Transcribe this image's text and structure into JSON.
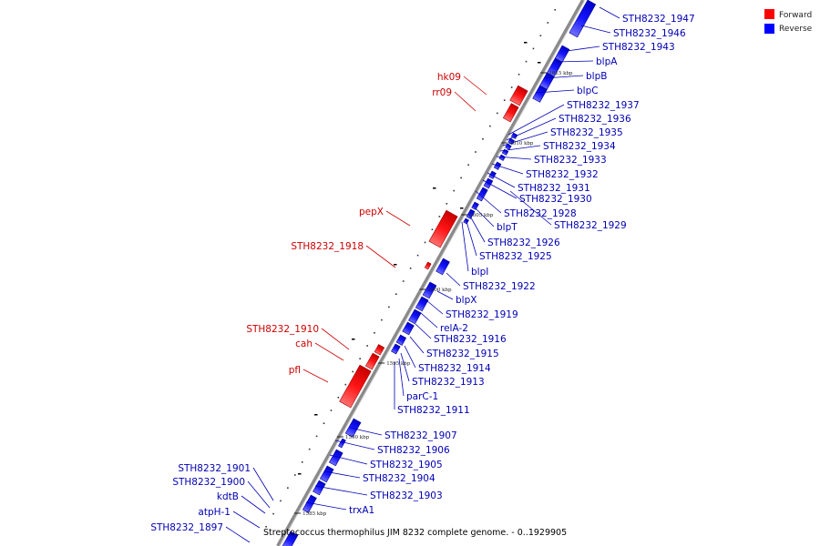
{
  "caption": "Streptococcus thermophilus JIM 8232 complete genome. - 0..1929905",
  "legend": [
    {
      "label": "Forward",
      "color": "#ff0000"
    },
    {
      "label": "Reverse",
      "color": "#0000ff"
    }
  ],
  "colors": {
    "forward": "#ff1a1a",
    "reverse": "#1a1aff",
    "axis": "#8a8a8a"
  },
  "ticks": [
    "1615 kbp",
    "1610 kbp",
    "1605 kbp",
    "1600 kbp",
    "1595 kbp",
    "1590 kbp",
    "1585 kbp"
  ],
  "forward_labels": [
    "hk09",
    "rr09",
    "pepX",
    "STH8232_1918",
    "STH8232_1910",
    "cah",
    "pfl"
  ],
  "reverse_labels": [
    "STH8232_1947",
    "STH8232_1946",
    "STH8232_1943",
    "blpA",
    "blpB",
    "blpC",
    "STH8232_1937",
    "STH8232_1936",
    "STH8232_1935",
    "STH8232_1934",
    "STH8232_1933",
    "STH8232_1932",
    "STH8232_1931",
    "STH8232_1930",
    "STH8232_1928",
    "blpT",
    "STH8232_1929",
    "STH8232_1926",
    "STH8232_1925",
    "blpI",
    "STH8232_1922",
    "blpX",
    "STH8232_1919",
    "relA-2",
    "STH8232_1916",
    "STH8232_1915",
    "STH8232_1914",
    "STH8232_1913",
    "parC-1",
    "STH8232_1911",
    "STH8232_1907",
    "STH8232_1906",
    "STH8232_1905",
    "STH8232_1904",
    "STH8232_1903",
    "trxA1"
  ],
  "left_reverse_labels": [
    "STH8232_1901",
    "STH8232_1900",
    "kdtB",
    "atpH-1",
    "STH8232_1897"
  ]
}
